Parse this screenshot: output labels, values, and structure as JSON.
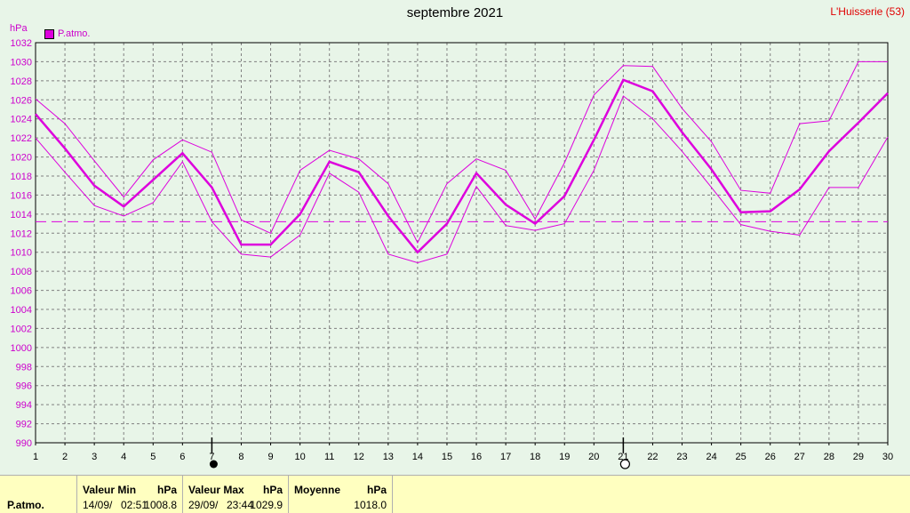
{
  "title": "septembre 2021",
  "station": "L'Huisserie (53)",
  "unit": "hPa",
  "legend_label": "P.atmo.",
  "colors": {
    "series": "#dd00dd",
    "grid": "#808080",
    "axis_text": "#cc00cc",
    "station": "#e00000"
  },
  "chart_data": {
    "type": "line",
    "title": "septembre 2021",
    "ylabel": "hPa",
    "xlabel": "",
    "ylim": [
      990,
      1032
    ],
    "xlim": [
      1,
      30
    ],
    "grid": true,
    "legend": "top-left",
    "x": [
      1,
      2,
      3,
      4,
      5,
      6,
      7,
      8,
      9,
      10,
      11,
      12,
      13,
      14,
      15,
      16,
      17,
      18,
      19,
      20,
      21,
      22,
      23,
      24,
      25,
      26,
      27,
      28,
      29,
      30
    ],
    "series": [
      {
        "name": "P.atmo.",
        "role": "mean",
        "values": [
          1024.5,
          1020.9,
          1017.0,
          1014.8,
          1017.6,
          1020.4,
          1016.8,
          1010.8,
          1010.8,
          1014.0,
          1019.5,
          1018.4,
          1013.8,
          1010.0,
          1013.0,
          1018.3,
          1015.0,
          1013.0,
          1015.9,
          1021.8,
          1028.1,
          1026.9,
          1022.6,
          1018.7,
          1014.2,
          1014.3,
          1016.6,
          1020.6,
          1023.6,
          1026.7
        ]
      },
      {
        "name": "",
        "role": "max",
        "values": [
          1026.1,
          1023.5,
          1019.6,
          1015.8,
          1019.7,
          1021.8,
          1020.5,
          1013.4,
          1012.0,
          1018.6,
          1020.7,
          1019.8,
          1017.2,
          1011.0,
          1017.2,
          1019.8,
          1018.6,
          1013.5,
          1019.4,
          1026.5,
          1029.6,
          1029.5,
          1025.1,
          1021.6,
          1016.5,
          1016.2,
          1023.5,
          1023.8,
          1030.0,
          1030.0
        ]
      },
      {
        "name": "",
        "role": "min",
        "values": [
          1022.0,
          1018.4,
          1014.9,
          1013.8,
          1015.2,
          1019.5,
          1013.2,
          1009.8,
          1009.5,
          1011.8,
          1018.3,
          1016.3,
          1009.8,
          1008.9,
          1009.8,
          1016.9,
          1012.8,
          1012.3,
          1013.0,
          1018.6,
          1026.4,
          1024.0,
          1020.6,
          1016.8,
          1012.9,
          1012.2,
          1011.8,
          1016.8,
          1016.8,
          1022.1
        ]
      }
    ],
    "reference_line": 1013.2,
    "moon_phases": [
      {
        "day": 7,
        "phase": "new-moon"
      },
      {
        "day": 21,
        "phase": "full-moon"
      }
    ]
  },
  "table": {
    "row_label": "P.atmo.",
    "min_header": "Valeur Min",
    "max_header": "Valeur Max",
    "mean_header": "Moyenne",
    "unit": "hPa",
    "min_date": "14/09/",
    "min_time": "02:51",
    "min_value": "1008.8",
    "max_date": "29/09/",
    "max_time": "23:44",
    "max_value": "1029.9",
    "mean_value": "1018.0"
  }
}
